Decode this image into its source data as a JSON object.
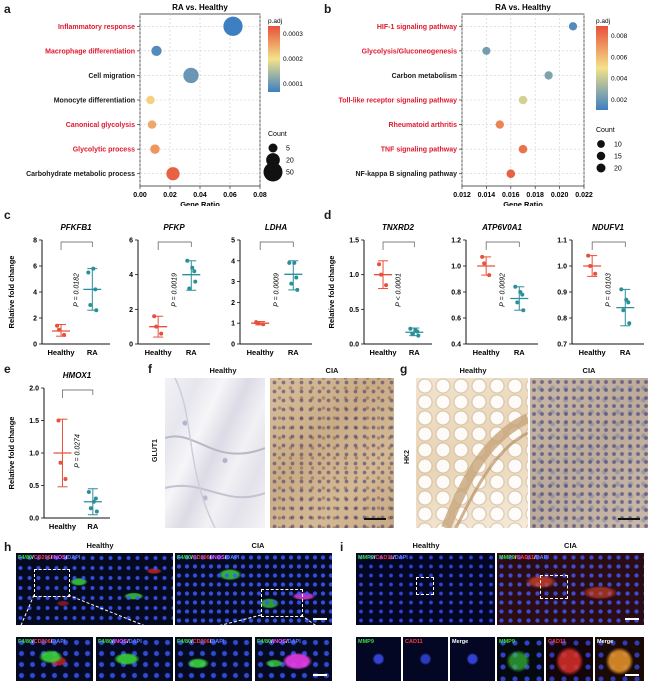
{
  "panels": {
    "a": "a",
    "b": "b",
    "c": "c",
    "d": "d",
    "e": "e",
    "f": "f",
    "g": "g",
    "h": "h",
    "i": "i"
  },
  "colors": {
    "red_group": "#e8503a",
    "teal_group": "#2a8f99",
    "highlight_text": "#e0182d",
    "dot_scale_high": "#e8503a",
    "dot_scale_mid": "#f4e28a",
    "dot_scale_low": "#3d7fc1"
  },
  "chart_data": [
    {
      "id": "a",
      "type": "scatter",
      "title": "RA vs. Healthy",
      "xlabel": "Gene Ratio",
      "xlim": [
        0.0,
        0.08
      ],
      "xticks": [
        "0.00",
        "0.02",
        "0.04",
        "0.06",
        "0.08"
      ],
      "categories": [
        "Inflammatory response",
        "Macrophage differentiation",
        "Cell migration",
        "Monocyte differentiation",
        "Canonical glycolysis",
        "Glycolytic process",
        "Carbohydrate metabolic process"
      ],
      "highlighted": [
        true,
        true,
        false,
        false,
        true,
        true,
        false
      ],
      "x": [
        0.062,
        0.011,
        0.034,
        0.007,
        0.008,
        0.01,
        0.022
      ],
      "count": [
        52,
        8,
        28,
        4,
        4,
        6,
        18
      ],
      "padj": [
        1e-05,
        3e-05,
        5e-05,
        0.0002,
        0.00025,
        0.00027,
        0.00033
      ],
      "color_legend": {
        "title": "p.adj",
        "ticks": [
          "0.0003",
          "0.0002",
          "0.0001"
        ],
        "min": 1e-05,
        "max": 0.00035
      },
      "size_legend": {
        "title": "Count",
        "labels": [
          "5",
          "20",
          "50"
        ],
        "values": [
          5,
          20,
          50
        ]
      }
    },
    {
      "id": "b",
      "type": "scatter",
      "title": "RA vs. Healthy",
      "xlabel": "Gene Ratio",
      "xlim": [
        0.012,
        0.022
      ],
      "xticks": [
        "0.012",
        "0.014",
        "0.016",
        "0.018",
        "0.020",
        "0.022"
      ],
      "categories": [
        "HIF-1 signaling pathway",
        "Glycolysis/Gluconeogenesis",
        "Carbon metabolism",
        "Toll-like receptor signaling pathway",
        "Rheumatoid arthritis",
        "TNF signaling pathway",
        "NF-kappa B signaling pathway"
      ],
      "highlighted": [
        true,
        true,
        false,
        true,
        true,
        true,
        false
      ],
      "x": [
        0.0211,
        0.014,
        0.0191,
        0.017,
        0.0151,
        0.017,
        0.016
      ],
      "count": [
        14,
        12,
        14,
        16,
        14,
        16,
        16
      ],
      "padj": [
        0.001,
        0.0018,
        0.002,
        0.004,
        0.0075,
        0.008,
        0.0085
      ],
      "color_legend": {
        "title": "p.adj",
        "ticks": [
          "0.008",
          "0.006",
          "0.004",
          "0.002"
        ],
        "min": 0.0005,
        "max": 0.009
      },
      "size_legend": {
        "title": "Count",
        "labels": [
          "10",
          "15",
          "20"
        ],
        "values": [
          10,
          15,
          20
        ]
      }
    },
    {
      "id": "c1",
      "type": "scatter",
      "title": "PFKFB1",
      "ylabel": "Relative fold change",
      "categories": [
        "Healthy",
        "RA"
      ],
      "ylim": [
        0,
        8
      ],
      "yticks": [
        "0",
        "2",
        "4",
        "6",
        "8"
      ],
      "series": [
        {
          "name": "Healthy",
          "points": [
            1.4,
            0.7,
            1.1
          ],
          "mean": 1.0,
          "err": [
            0.6,
            1.5
          ]
        },
        {
          "name": "RA",
          "points": [
            5.5,
            4.2,
            3.0,
            2.6,
            5.8
          ],
          "mean": 4.2,
          "err": [
            2.6,
            5.8
          ]
        }
      ],
      "pvalue": "P = 0.0182"
    },
    {
      "id": "c2",
      "type": "scatter",
      "title": "PFKP",
      "ylabel": "",
      "categories": [
        "Healthy",
        "RA"
      ],
      "ylim": [
        0,
        6
      ],
      "yticks": [
        "0",
        "2",
        "4",
        "6"
      ],
      "series": [
        {
          "name": "Healthy",
          "points": [
            1.6,
            0.6,
            1.0
          ],
          "mean": 1.0,
          "err": [
            0.4,
            1.6
          ]
        },
        {
          "name": "RA",
          "points": [
            4.8,
            4.2,
            3.2,
            3.6,
            4.4
          ],
          "mean": 4.0,
          "err": [
            3.1,
            4.8
          ]
        }
      ],
      "pvalue": "P = 0.0019"
    },
    {
      "id": "c3",
      "type": "scatter",
      "title": "LDHA",
      "ylabel": "",
      "categories": [
        "Healthy",
        "RA"
      ],
      "ylim": [
        0,
        5
      ],
      "yticks": [
        "0",
        "1",
        "2",
        "3",
        "4",
        "5"
      ],
      "series": [
        {
          "name": "Healthy",
          "points": [
            1.05,
            0.95,
            1.0
          ],
          "mean": 1.0,
          "err": [
            0.92,
            1.08
          ]
        },
        {
          "name": "RA",
          "points": [
            3.9,
            3.2,
            2.9,
            2.6,
            3.9
          ],
          "mean": 3.35,
          "err": [
            2.6,
            4.0
          ]
        }
      ],
      "pvalue": "P = 0.0009"
    },
    {
      "id": "d1",
      "type": "scatter",
      "title": "TNXRD2",
      "ylabel": "Relative fold change",
      "categories": [
        "Healthy",
        "RA"
      ],
      "ylim": [
        0.0,
        1.5
      ],
      "yticks": [
        "0.0",
        "0.5",
        "1.0",
        "1.5"
      ],
      "series": [
        {
          "name": "Healthy",
          "points": [
            1.15,
            0.85,
            1.0
          ],
          "mean": 1.0,
          "err": [
            0.8,
            1.2
          ]
        },
        {
          "name": "RA",
          "points": [
            0.22,
            0.18,
            0.15,
            0.12,
            0.2
          ],
          "mean": 0.17,
          "err": [
            0.12,
            0.23
          ]
        }
      ],
      "pvalue": "P < 0.0001"
    },
    {
      "id": "d2",
      "type": "scatter",
      "title": "ATP6V0A1",
      "ylabel": "",
      "categories": [
        "Healthy",
        "RA"
      ],
      "ylim": [
        0.4,
        1.2
      ],
      "yticks": [
        "0.4",
        "0.6",
        "0.8",
        "1.0",
        "1.2"
      ],
      "series": [
        {
          "name": "Healthy",
          "points": [
            1.07,
            0.93,
            1.02
          ],
          "mean": 1.0,
          "err": [
            0.93,
            1.07
          ]
        },
        {
          "name": "RA",
          "points": [
            0.84,
            0.78,
            0.72,
            0.66,
            0.8
          ],
          "mean": 0.75,
          "err": [
            0.66,
            0.84
          ]
        }
      ],
      "pvalue": "P = 0.0092"
    },
    {
      "id": "d3",
      "type": "scatter",
      "title": "NDUFV1",
      "ylabel": "",
      "categories": [
        "Healthy",
        "RA"
      ],
      "ylim": [
        0.7,
        1.1
      ],
      "yticks": [
        "0.7",
        "0.8",
        "0.9",
        "1.0",
        "1.1"
      ],
      "series": [
        {
          "name": "Healthy",
          "points": [
            1.04,
            0.97,
            1.0
          ],
          "mean": 1.0,
          "err": [
            0.96,
            1.04
          ]
        },
        {
          "name": "RA",
          "points": [
            0.91,
            0.86,
            0.83,
            0.78,
            0.87
          ],
          "mean": 0.84,
          "err": [
            0.77,
            0.91
          ]
        }
      ],
      "pvalue": "P = 0.0103"
    },
    {
      "id": "e",
      "type": "scatter",
      "title": "HMOX1",
      "ylabel": "Relative fold change",
      "categories": [
        "Healthy",
        "RA"
      ],
      "ylim": [
        0.0,
        2.0
      ],
      "yticks": [
        "0.0",
        "0.5",
        "1.0",
        "1.5",
        "2.0"
      ],
      "series": [
        {
          "name": "Healthy",
          "points": [
            1.5,
            0.6,
            0.85
          ],
          "mean": 1.0,
          "err": [
            0.48,
            1.52
          ]
        },
        {
          "name": "RA",
          "points": [
            0.4,
            0.3,
            0.15,
            0.1,
            0.25
          ],
          "mean": 0.25,
          "err": [
            0.05,
            0.45
          ]
        }
      ],
      "pvalue": "P = 0.0274"
    }
  ],
  "micrographs": {
    "f": {
      "row_label": "GLUT1",
      "col_labels": [
        "Healthy",
        "CIA"
      ]
    },
    "g": {
      "row_label": "HK2",
      "col_labels": [
        "Healthy",
        "CIA"
      ]
    },
    "h": {
      "col_labels": [
        "Healthy",
        "CIA"
      ],
      "stain": {
        "f480": "F4/80",
        "cd206": "CD206",
        "inos": "iNOS",
        "dapi": "DAPI"
      }
    },
    "i": {
      "col_labels": [
        "Healthy",
        "CIA"
      ],
      "stain": {
        "mmp9": "MMP9",
        "cad11": "CAD11",
        "dapi": "DAPI",
        "merge": "Merge"
      }
    }
  }
}
